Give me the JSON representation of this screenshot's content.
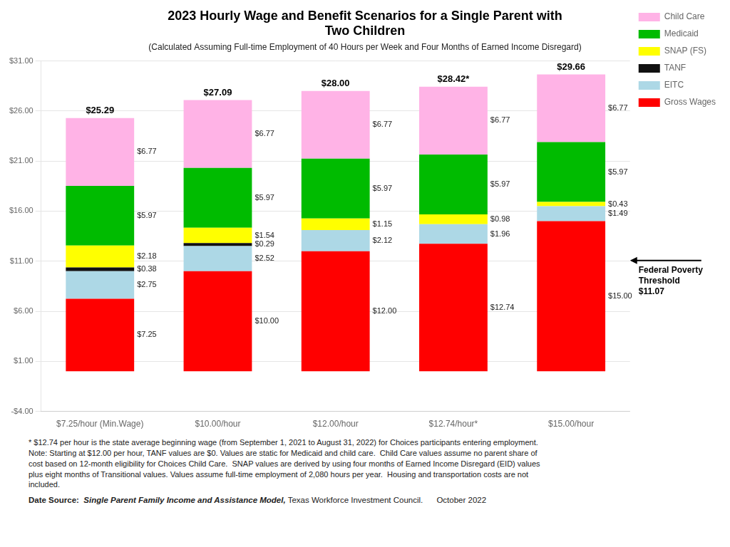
{
  "chart_data": {
    "type": "bar",
    "stacked": true,
    "title": [
      "2023 Hourly Wage and Benefit Scenarios for a Single Parent with",
      "Two Children"
    ],
    "subtitle": "(Calculated Assuming Full-time Employment of 40 Hours per Week and Four Months of Earned Income Disregard)",
    "categories": [
      "$7.25/hour (Min.Wage)",
      "$10.00/hour",
      "$12.00/hour",
      "$12.74/hour*",
      "$15.00/hour"
    ],
    "series": [
      {
        "name": "Gross Wages",
        "color": "#FF0000",
        "values": [
          7.25,
          10.0,
          12.0,
          12.74,
          15.0
        ],
        "value_labels": [
          "$7.25",
          "$10.00",
          "$12.00",
          "$12.74",
          "$15.00"
        ]
      },
      {
        "name": "EITC",
        "color": "#ADD8E6",
        "values": [
          2.75,
          2.52,
          2.12,
          1.96,
          1.49
        ],
        "value_labels": [
          "$2.75",
          "$2.52",
          "$2.12",
          "$1.96",
          "$1.49"
        ]
      },
      {
        "name": "TANF",
        "color": "#111111",
        "values": [
          0.38,
          0.29,
          0.0,
          0.0,
          0.0
        ],
        "value_labels": [
          "$0.38",
          "$0.29",
          null,
          null,
          null
        ]
      },
      {
        "name": "SNAP (FS)",
        "color": "#FFFF00",
        "values": [
          2.18,
          1.54,
          1.15,
          0.98,
          0.43
        ],
        "value_labels": [
          "$2.18",
          "$1.54",
          "$1.15",
          "$0.98",
          "$0.43"
        ]
      },
      {
        "name": "Medicaid",
        "color": "#00BB00",
        "values": [
          5.97,
          5.97,
          5.97,
          5.97,
          5.97
        ],
        "value_labels": [
          "$5.97",
          "$5.97",
          "$5.97",
          "$5.97",
          "$5.97"
        ]
      },
      {
        "name": "Child Care",
        "color": "#FFB3E6",
        "values": [
          6.77,
          6.77,
          6.77,
          6.77,
          6.77
        ],
        "value_labels": [
          "$6.77",
          "$6.77",
          "$6.77",
          "$6.77",
          "$6.77"
        ]
      }
    ],
    "data_labels": true,
    "totals": {
      "values": [
        25.29,
        27.09,
        28.0,
        28.42,
        29.66
      ],
      "value_labels": [
        "$25.29",
        "$27.09",
        "$28.00",
        "$28.42*",
        "$29.66"
      ]
    },
    "annotations": [
      {
        "value": 11.07,
        "label": "Federal Poverty\nThreshold\n$11.07"
      }
    ],
    "ylim": [
      -4.0,
      31.0
    ],
    "yticks": [
      {
        "value": -4.0,
        "label": "-$4.00"
      },
      {
        "value": 1.0,
        "label": "$1.00"
      },
      {
        "value": 6.0,
        "label": "$6.00"
      },
      {
        "value": 11.0,
        "label": "$11.00"
      },
      {
        "value": 16.0,
        "label": "$16.00"
      },
      {
        "value": 21.0,
        "label": "$21.00"
      },
      {
        "value": 26.0,
        "label": "$26.00"
      },
      {
        "value": 31.0,
        "label": "$31.00"
      }
    ],
    "grid": true,
    "legend": "right",
    "footnote": "* $12.74 per hour is the state average beginning wage (from September 1, 2021 to August 31, 2022) for Choices participants entering employment.\nNote: Starting at $12.00 per hour, TANF values are $0. Values are static for Medicaid and child care.  Child Care values assume no parent share of\ncost based on 12-month eligibility for Choices Child Care.  SNAP values are derived by using four months of Earned Income Disregard (EID) values\nplus eight months of Transitional values. Values assume full-time employment of 2,080 hours per year.  Housing and transportation costs are not\nincluded.",
    "source": {
      "prefix": "Date Source:  ",
      "title": "Single Parent Family Income and Assistance Model,",
      "text": " Texas Workforce Investment Council.      October 2022"
    }
  }
}
